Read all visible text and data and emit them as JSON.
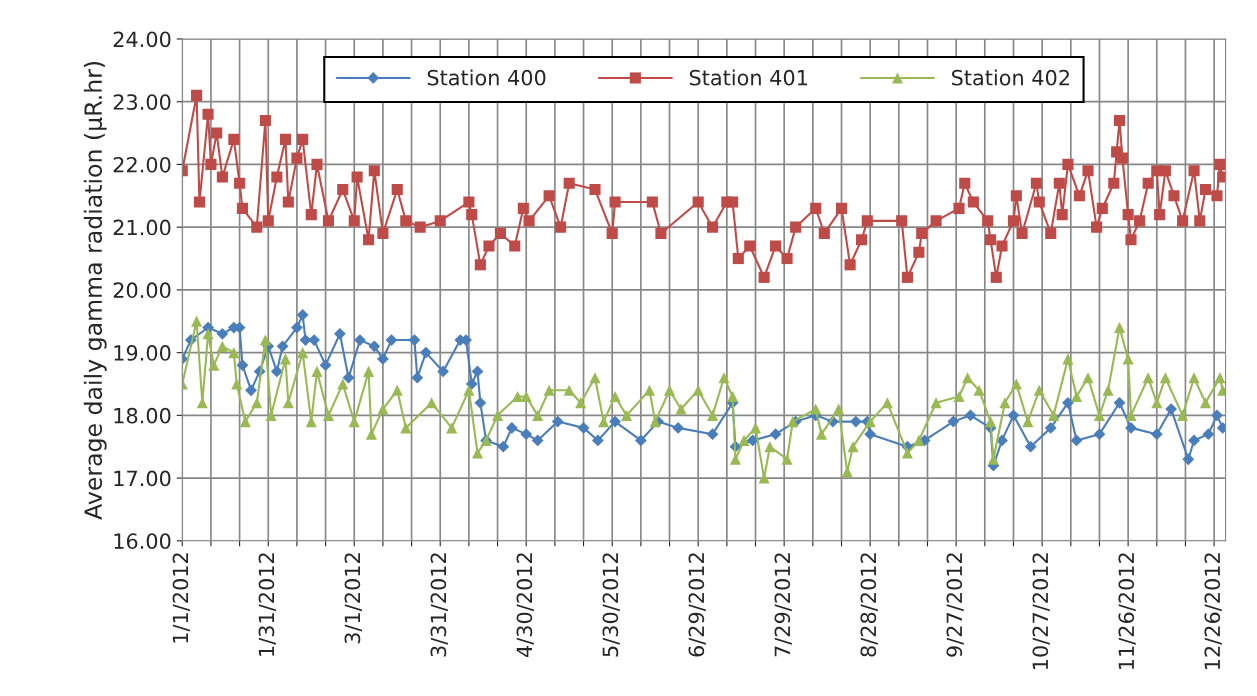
{
  "chart_data": {
    "type": "line",
    "ylabel": "Average daily gamma radiation (µR.hr)",
    "xlim": [
      "2012-01-01",
      "2012-12-30"
    ],
    "xticks": [
      {
        "value": "2012-01-01",
        "label": "1/1/2012"
      },
      {
        "value": "2012-01-11",
        "label": null
      },
      {
        "value": "2012-01-21",
        "label": null
      },
      {
        "value": "2012-01-31",
        "label": "1/31/2012"
      },
      {
        "value": "2012-02-10",
        "label": null
      },
      {
        "value": "2012-02-20",
        "label": null
      },
      {
        "value": "2012-03-01",
        "label": "3/1/2012"
      },
      {
        "value": "2012-03-11",
        "label": null
      },
      {
        "value": "2012-03-21",
        "label": null
      },
      {
        "value": "2012-03-31",
        "label": "3/31/2012"
      },
      {
        "value": "2012-04-10",
        "label": null
      },
      {
        "value": "2012-04-20",
        "label": null
      },
      {
        "value": "2012-04-30",
        "label": "4/30/2012"
      },
      {
        "value": "2012-05-10",
        "label": null
      },
      {
        "value": "2012-05-20",
        "label": null
      },
      {
        "value": "2012-05-30",
        "label": "5/30/2012"
      },
      {
        "value": "2012-06-09",
        "label": null
      },
      {
        "value": "2012-06-19",
        "label": null
      },
      {
        "value": "2012-06-29",
        "label": "6/29/2012"
      },
      {
        "value": "2012-07-09",
        "label": null
      },
      {
        "value": "2012-07-19",
        "label": null
      },
      {
        "value": "2012-07-29",
        "label": "7/29/2012"
      },
      {
        "value": "2012-08-08",
        "label": null
      },
      {
        "value": "2012-08-18",
        "label": null
      },
      {
        "value": "2012-08-28",
        "label": "8/28/2012"
      },
      {
        "value": "2012-09-07",
        "label": null
      },
      {
        "value": "2012-09-17",
        "label": null
      },
      {
        "value": "2012-09-27",
        "label": "9/27/2012"
      },
      {
        "value": "2012-10-07",
        "label": null
      },
      {
        "value": "2012-10-17",
        "label": null
      },
      {
        "value": "2012-10-27",
        "label": "10/27/2012"
      },
      {
        "value": "2012-11-06",
        "label": null
      },
      {
        "value": "2012-11-16",
        "label": null
      },
      {
        "value": "2012-11-26",
        "label": "11/26/2012"
      },
      {
        "value": "2012-12-06",
        "label": null
      },
      {
        "value": "2012-12-16",
        "label": null
      },
      {
        "value": "2012-12-26",
        "label": "12/26/2012"
      }
    ],
    "ylim": [
      16,
      24
    ],
    "yticks": [
      {
        "value": 16,
        "label": "16.00"
      },
      {
        "value": 17,
        "label": "17.00"
      },
      {
        "value": 18,
        "label": "18.00"
      },
      {
        "value": 19,
        "label": "19.00"
      },
      {
        "value": 20,
        "label": "20.00"
      },
      {
        "value": 21,
        "label": "21.00"
      },
      {
        "value": 22,
        "label": "22.00"
      },
      {
        "value": 23,
        "label": "23.00"
      },
      {
        "value": 24,
        "label": "24.00"
      }
    ],
    "grid": true,
    "legend": "top",
    "line_style": "solid",
    "series": [
      {
        "name": "Station 400",
        "color": "#4a7ebb",
        "marker": "diamond",
        "x": [
          "2012-01-01",
          "2012-01-04",
          "2012-01-10",
          "2012-01-15",
          "2012-01-19",
          "2012-01-21",
          "2012-01-22",
          "2012-01-25",
          "2012-01-28",
          "2012-01-31",
          "2012-02-03",
          "2012-02-05",
          "2012-02-10",
          "2012-02-12",
          "2012-02-13",
          "2012-02-16",
          "2012-02-20",
          "2012-02-25",
          "2012-02-28",
          "2012-03-03",
          "2012-03-08",
          "2012-03-11",
          "2012-03-14",
          "2012-03-22",
          "2012-03-23",
          "2012-03-26",
          "2012-04-01",
          "2012-04-07",
          "2012-04-09",
          "2012-04-11",
          "2012-04-13",
          "2012-04-14",
          "2012-04-16",
          "2012-04-22",
          "2012-04-25",
          "2012-04-30",
          "2012-05-04",
          "2012-05-11",
          "2012-05-20",
          "2012-05-25",
          "2012-05-31",
          "2012-06-09",
          "2012-06-15",
          "2012-06-22",
          "2012-07-04",
          "2012-07-11",
          "2012-07-12",
          "2012-07-18",
          "2012-07-26",
          "2012-08-02",
          "2012-08-09",
          "2012-08-15",
          "2012-08-23",
          "2012-08-27",
          "2012-08-28",
          "2012-09-10",
          "2012-09-16",
          "2012-09-26",
          "2012-10-02",
          "2012-10-09",
          "2012-10-10",
          "2012-10-13",
          "2012-10-17",
          "2012-10-23",
          "2012-10-30",
          "2012-11-05",
          "2012-11-08",
          "2012-11-16",
          "2012-11-23",
          "2012-11-27",
          "2012-12-06",
          "2012-12-11",
          "2012-12-17",
          "2012-12-19",
          "2012-12-24",
          "2012-12-27",
          "2012-12-29"
        ],
        "values": [
          18.9,
          19.2,
          19.4,
          19.3,
          19.4,
          19.4,
          18.8,
          18.4,
          18.7,
          19.1,
          18.7,
          19.1,
          19.4,
          19.6,
          19.2,
          19.2,
          18.8,
          19.3,
          18.6,
          19.2,
          19.1,
          18.9,
          19.2,
          19.2,
          18.6,
          19.0,
          18.7,
          19.2,
          19.2,
          18.5,
          18.7,
          18.2,
          17.6,
          17.5,
          17.8,
          17.7,
          17.6,
          17.9,
          17.8,
          17.6,
          17.9,
          17.6,
          17.9,
          17.8,
          17.7,
          18.2,
          17.5,
          17.6,
          17.7,
          17.9,
          18.0,
          17.9,
          17.9,
          17.9,
          17.7,
          17.5,
          17.6,
          17.9,
          18.0,
          17.8,
          17.2,
          17.6,
          18.0,
          17.5,
          17.8,
          18.2,
          17.6,
          17.7,
          18.2,
          17.8,
          17.7,
          18.1,
          17.3,
          17.6,
          17.7,
          18.0,
          17.8
        ]
      },
      {
        "name": "Station 401",
        "color": "#be4b48",
        "marker": "square",
        "x": [
          "2012-01-01",
          "2012-01-06",
          "2012-01-07",
          "2012-01-10",
          "2012-01-11",
          "2012-01-13",
          "2012-01-15",
          "2012-01-19",
          "2012-01-21",
          "2012-01-22",
          "2012-01-27",
          "2012-01-30",
          "2012-01-31",
          "2012-02-03",
          "2012-02-06",
          "2012-02-07",
          "2012-02-10",
          "2012-02-12",
          "2012-02-15",
          "2012-02-17",
          "2012-02-21",
          "2012-02-26",
          "2012-03-01",
          "2012-03-02",
          "2012-03-06",
          "2012-03-08",
          "2012-03-11",
          "2012-03-16",
          "2012-03-19",
          "2012-03-24",
          "2012-03-31",
          "2012-04-10",
          "2012-04-11",
          "2012-04-14",
          "2012-04-17",
          "2012-04-21",
          "2012-04-26",
          "2012-04-29",
          "2012-05-01",
          "2012-05-08",
          "2012-05-12",
          "2012-05-15",
          "2012-05-24",
          "2012-05-30",
          "2012-05-31",
          "2012-06-13",
          "2012-06-16",
          "2012-06-29",
          "2012-07-04",
          "2012-07-09",
          "2012-07-11",
          "2012-07-13",
          "2012-07-17",
          "2012-07-22",
          "2012-07-26",
          "2012-07-30",
          "2012-08-02",
          "2012-08-09",
          "2012-08-12",
          "2012-08-18",
          "2012-08-21",
          "2012-08-25",
          "2012-08-27",
          "2012-09-08",
          "2012-09-10",
          "2012-09-14",
          "2012-09-15",
          "2012-09-20",
          "2012-09-28",
          "2012-09-30",
          "2012-10-03",
          "2012-10-08",
          "2012-10-09",
          "2012-10-11",
          "2012-10-13",
          "2012-10-17",
          "2012-10-18",
          "2012-10-20",
          "2012-10-25",
          "2012-10-26",
          "2012-10-30",
          "2012-11-02",
          "2012-11-03",
          "2012-11-05",
          "2012-11-09",
          "2012-11-12",
          "2012-11-15",
          "2012-11-17",
          "2012-11-21",
          "2012-11-22",
          "2012-11-23",
          "2012-11-24",
          "2012-11-26",
          "2012-11-27",
          "2012-11-30",
          "2012-12-03",
          "2012-12-06",
          "2012-12-07",
          "2012-12-09",
          "2012-12-12",
          "2012-12-15",
          "2012-12-19",
          "2012-12-21",
          "2012-12-23",
          "2012-12-27",
          "2012-12-28",
          "2012-12-29"
        ],
        "values": [
          21.9,
          23.1,
          21.4,
          22.8,
          22.0,
          22.5,
          21.8,
          22.4,
          21.7,
          21.3,
          21.0,
          22.7,
          21.1,
          21.8,
          22.4,
          21.4,
          22.1,
          22.4,
          21.2,
          22.0,
          21.1,
          21.6,
          21.1,
          21.8,
          20.8,
          21.9,
          20.9,
          21.6,
          21.1,
          21.0,
          21.1,
          21.4,
          21.2,
          20.4,
          20.7,
          20.9,
          20.7,
          21.3,
          21.1,
          21.5,
          21.0,
          21.7,
          21.6,
          20.9,
          21.4,
          21.4,
          20.9,
          21.4,
          21.0,
          21.4,
          21.4,
          20.5,
          20.7,
          20.2,
          20.7,
          20.5,
          21.0,
          21.3,
          20.9,
          21.3,
          20.4,
          20.8,
          21.1,
          21.1,
          20.2,
          20.6,
          20.9,
          21.1,
          21.3,
          21.7,
          21.4,
          21.1,
          20.8,
          20.2,
          20.7,
          21.1,
          21.5,
          20.9,
          21.7,
          21.4,
          20.9,
          21.7,
          21.2,
          22.0,
          21.5,
          21.9,
          21.0,
          21.3,
          21.7,
          22.2,
          22.7,
          22.1,
          21.2,
          20.8,
          21.1,
          21.7,
          21.9,
          21.2,
          21.9,
          21.5,
          21.1,
          21.9,
          21.1,
          21.6,
          21.5,
          22.0,
          21.8
        ]
      },
      {
        "name": "Station 402",
        "color": "#98b954",
        "marker": "triangle",
        "x": [
          "2012-01-01",
          "2012-01-06",
          "2012-01-08",
          "2012-01-10",
          "2012-01-12",
          "2012-01-15",
          "2012-01-19",
          "2012-01-20",
          "2012-01-23",
          "2012-01-27",
          "2012-01-30",
          "2012-02-01",
          "2012-02-06",
          "2012-02-07",
          "2012-02-12",
          "2012-02-15",
          "2012-02-17",
          "2012-02-21",
          "2012-02-26",
          "2012-03-01",
          "2012-03-06",
          "2012-03-07",
          "2012-03-11",
          "2012-03-16",
          "2012-03-19",
          "2012-03-28",
          "2012-04-04",
          "2012-04-10",
          "2012-04-13",
          "2012-04-16",
          "2012-04-20",
          "2012-04-27",
          "2012-04-30",
          "2012-05-04",
          "2012-05-08",
          "2012-05-15",
          "2012-05-19",
          "2012-05-24",
          "2012-05-27",
          "2012-05-31",
          "2012-06-04",
          "2012-06-12",
          "2012-06-14",
          "2012-06-19",
          "2012-06-23",
          "2012-06-29",
          "2012-07-04",
          "2012-07-08",
          "2012-07-11",
          "2012-07-12",
          "2012-07-15",
          "2012-07-19",
          "2012-07-22",
          "2012-07-24",
          "2012-07-30",
          "2012-08-01",
          "2012-08-09",
          "2012-08-11",
          "2012-08-17",
          "2012-08-20",
          "2012-08-22",
          "2012-08-28",
          "2012-09-03",
          "2012-09-10",
          "2012-09-14",
          "2012-09-20",
          "2012-09-28",
          "2012-10-01",
          "2012-10-05",
          "2012-10-09",
          "2012-10-10",
          "2012-10-14",
          "2012-10-18",
          "2012-10-22",
          "2012-10-26",
          "2012-10-31",
          "2012-11-05",
          "2012-11-08",
          "2012-11-12",
          "2012-11-16",
          "2012-11-19",
          "2012-11-23",
          "2012-11-26",
          "2012-11-27",
          "2012-12-03",
          "2012-12-06",
          "2012-12-09",
          "2012-12-15",
          "2012-12-19",
          "2012-12-23",
          "2012-12-28",
          "2012-12-29"
        ],
        "values": [
          18.5,
          19.5,
          18.2,
          19.3,
          18.8,
          19.1,
          19.0,
          18.5,
          17.9,
          18.2,
          19.2,
          18.0,
          18.9,
          18.2,
          19.0,
          17.9,
          18.7,
          18.0,
          18.5,
          17.9,
          18.7,
          17.7,
          18.1,
          18.4,
          17.8,
          18.2,
          17.8,
          18.4,
          17.4,
          17.6,
          18.0,
          18.3,
          18.3,
          18.0,
          18.4,
          18.4,
          18.2,
          18.6,
          17.9,
          18.3,
          18.0,
          18.4,
          17.9,
          18.4,
          18.1,
          18.4,
          18.0,
          18.6,
          18.3,
          17.3,
          17.6,
          17.8,
          17.0,
          17.5,
          17.3,
          17.9,
          18.1,
          17.7,
          18.1,
          17.1,
          17.5,
          17.9,
          18.2,
          17.4,
          17.6,
          18.2,
          18.3,
          18.6,
          18.4,
          17.9,
          17.3,
          18.2,
          18.5,
          17.9,
          18.4,
          18.0,
          18.9,
          18.3,
          18.6,
          18.0,
          18.4,
          19.4,
          18.9,
          18.0,
          18.6,
          18.2,
          18.6,
          18.0,
          18.6,
          18.2,
          18.6,
          18.4
        ]
      }
    ]
  }
}
